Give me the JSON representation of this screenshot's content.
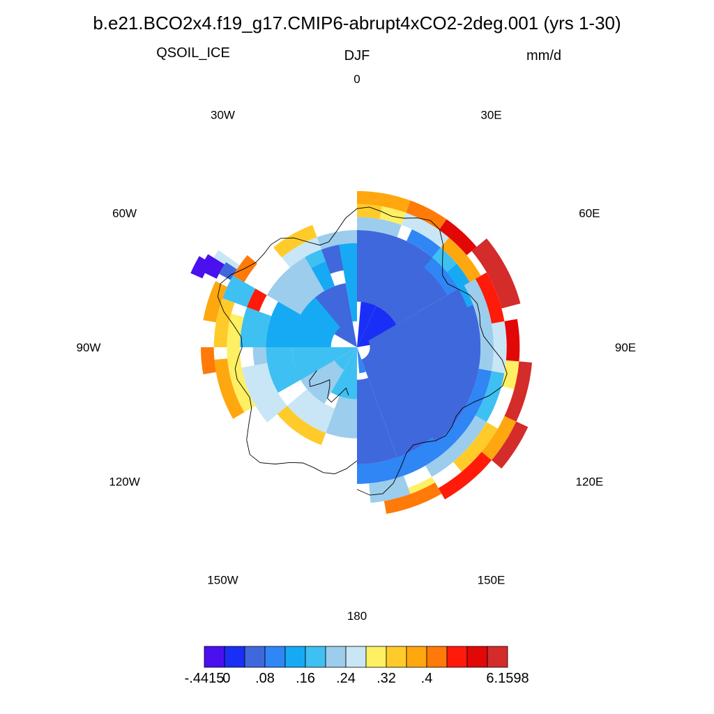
{
  "chart_data": {
    "type": "heatmap",
    "projection": "south-polar-stereographic",
    "title": "b.e21.BCO2x4.f19_g17.CMIP6-abrupt4xCO2-2deg.001 (yrs 1-30)",
    "left_string": "QSOIL_ICE",
    "center_string": "DJF",
    "right_string": "mm/d",
    "longitude_labels": [
      {
        "lon": 0,
        "text": "0"
      },
      {
        "lon": 30,
        "text": "30E"
      },
      {
        "lon": 60,
        "text": "60E"
      },
      {
        "lon": 90,
        "text": "90E"
      },
      {
        "lon": 120,
        "text": "120E"
      },
      {
        "lon": 150,
        "text": "150E"
      },
      {
        "lon": 180,
        "text": "180"
      },
      {
        "lon": -150,
        "text": "150W"
      },
      {
        "lon": -120,
        "text": "120W"
      },
      {
        "lon": -90,
        "text": "90W"
      },
      {
        "lon": -60,
        "text": "60W"
      },
      {
        "lon": -30,
        "text": "30W"
      }
    ],
    "colorbar": {
      "colors": [
        "#4a10f0",
        "#1a2ff5",
        "#3f68dd",
        "#2f86f4",
        "#17aaf4",
        "#3fc0f2",
        "#9ccdec",
        "#c8e6f5",
        "#ffef63",
        "#ffcb2a",
        "#ffa70f",
        "#ff7a08",
        "#ff1a0a",
        "#e20808",
        "#d42b2b"
      ],
      "boundary_labels": [
        {
          "index": 0,
          "text": "-.4415"
        },
        {
          "index": 1,
          "text": ".0"
        },
        {
          "index": 3,
          "text": ".08"
        },
        {
          "index": 5,
          "text": ".16"
        },
        {
          "index": 7,
          "text": ".24"
        },
        {
          "index": 9,
          "text": ".32"
        },
        {
          "index": 11,
          "text": ".4"
        },
        {
          "index": 15,
          "text": "6.1598"
        }
      ]
    },
    "sectors": [
      {
        "lon0": 5,
        "lon1": 25,
        "lat0": -90,
        "lat1": -80,
        "level": 1
      },
      {
        "lon0": 25,
        "lon1": 80,
        "lat0": -90,
        "lat1": -83,
        "level": 1
      },
      {
        "lon0": 30,
        "lon1": 40,
        "lat0": -83,
        "lat1": -81,
        "level": 1
      },
      {
        "lon0": 60,
        "lon1": 80,
        "lat0": -83,
        "lat1": -79,
        "level": 1
      },
      {
        "lon0": 80,
        "lon1": 95,
        "lat0": -88,
        "lat1": -80,
        "level": 1
      },
      {
        "lon0": -30,
        "lon1": 0,
        "lat0": -78,
        "lat1": -74,
        "level": 2
      },
      {
        "lon0": 0,
        "lon1": 60,
        "lat0": -83,
        "lat1": -72,
        "level": 2
      },
      {
        "lon0": 60,
        "lon1": 160,
        "lat0": -88,
        "lat1": -71,
        "level": 2
      },
      {
        "lon0": 160,
        "lon1": 180,
        "lat0": -85,
        "lat1": -72,
        "level": 2
      },
      {
        "lon0": -60,
        "lon1": -10,
        "lat0": -90,
        "lat1": -80,
        "level": 2
      },
      {
        "lon0": 160,
        "lon1": 175,
        "lat0": -90,
        "lat1": -86,
        "level": 3
      },
      {
        "lon0": 25,
        "lon1": 40,
        "lat0": -72,
        "lat1": -70,
        "level": 3
      },
      {
        "lon0": 100,
        "lon1": 160,
        "lat0": -71,
        "lat1": -69,
        "level": 3
      },
      {
        "lon0": 40,
        "lon1": 60,
        "lat0": -74,
        "lat1": -72,
        "level": 3
      },
      {
        "lon0": 140,
        "lon1": 180,
        "lat0": -72,
        "lat1": -69,
        "level": 3
      },
      {
        "lon0": -10,
        "lon1": 0,
        "lat0": -86,
        "lat1": -74,
        "level": 4
      },
      {
        "lon0": -90,
        "lon1": -40,
        "lat0": -86,
        "lat1": -76,
        "level": 4
      },
      {
        "lon0": -40,
        "lon1": -20,
        "lat0": -80,
        "lat1": -76,
        "level": 4
      },
      {
        "lon0": -150,
        "lon1": -110,
        "lat0": -86,
        "lat1": -80,
        "level": 4
      },
      {
        "lon0": 50,
        "lon1": 70,
        "lat0": -72,
        "lat1": -70,
        "level": 4
      },
      {
        "lon0": -120,
        "lon1": -90,
        "lat0": -90,
        "lat1": -80,
        "level": 5
      },
      {
        "lon0": -150,
        "lon1": -120,
        "lat0": -90,
        "lat1": -86,
        "level": 5
      },
      {
        "lon0": -180,
        "lon1": -150,
        "lat0": -90,
        "lat1": -82,
        "level": 5
      },
      {
        "lon0": -120,
        "lon1": -90,
        "lat0": -80,
        "lat1": -76,
        "level": 5
      },
      {
        "lon0": -90,
        "lon1": -70,
        "lat0": -76,
        "lat1": -72,
        "level": 5
      },
      {
        "lon0": -30,
        "lon1": -20,
        "lat0": -76,
        "lat1": -74,
        "level": 5
      },
      {
        "lon0": -70,
        "lon1": -60,
        "lat0": -72,
        "lat1": -68,
        "level": 5
      },
      {
        "lon0": 40,
        "lon1": 50,
        "lat0": -72,
        "lat1": -70,
        "level": 5
      },
      {
        "lon0": 100,
        "lon1": 120,
        "lat0": -69,
        "lat1": -67,
        "level": 5
      },
      {
        "lon0": -60,
        "lon1": -30,
        "lat0": -80,
        "lat1": -74,
        "level": 6
      },
      {
        "lon0": -150,
        "lon1": -120,
        "lat0": -86,
        "lat1": -80,
        "level": 6
      },
      {
        "lon0": -180,
        "lon1": -160,
        "lat0": -82,
        "lat1": -76,
        "level": 6
      },
      {
        "lon0": -110,
        "lon1": -90,
        "lat0": -76,
        "lat1": -74,
        "level": 6
      },
      {
        "lon0": -20,
        "lon1": 0,
        "lat0": -74,
        "lat1": -72,
        "level": 6
      },
      {
        "lon0": 0,
        "lon1": 20,
        "lat0": -72,
        "lat1": -70,
        "level": 6
      },
      {
        "lon0": 60,
        "lon1": 100,
        "lat0": -71,
        "lat1": -69,
        "level": 6
      },
      {
        "lon0": 120,
        "lon1": 150,
        "lat0": -69,
        "lat1": -67,
        "level": 6
      },
      {
        "lon0": 160,
        "lon1": 175,
        "lat0": -69,
        "lat1": -66,
        "level": 6
      },
      {
        "lon0": -160,
        "lon1": -130,
        "lat0": -80,
        "lat1": -76,
        "level": 7
      },
      {
        "lon0": -130,
        "lon1": -100,
        "lat0": -76,
        "lat1": -72,
        "level": 7
      },
      {
        "lon0": -40,
        "lon1": -20,
        "lat0": -74,
        "lat1": -72,
        "level": 7
      },
      {
        "lon0": 20,
        "lon1": 40,
        "lat0": -70,
        "lat1": -68,
        "level": 7
      },
      {
        "lon0": 80,
        "lon1": 100,
        "lat0": -69,
        "lat1": -67,
        "level": 7
      },
      {
        "lon0": -60,
        "lon1": -55,
        "lat0": -68,
        "lat1": -64,
        "level": 7
      },
      {
        "lon0": -100,
        "lon1": -75,
        "lat0": -72,
        "lat1": -70,
        "level": 8
      },
      {
        "lon0": -120,
        "lon1": -100,
        "lat0": -72,
        "lat1": -70,
        "level": 8
      },
      {
        "lon0": 10,
        "lon1": 20,
        "lat0": -70,
        "lat1": -68,
        "level": 8
      },
      {
        "lon0": 95,
        "lon1": 105,
        "lat0": -67,
        "lat1": -65,
        "level": 8
      },
      {
        "lon0": 150,
        "lon1": 160,
        "lat0": -67,
        "lat1": -65,
        "level": 8
      },
      {
        "lon0": -90,
        "lon1": -70,
        "lat0": -70,
        "lat1": -68,
        "level": 9
      },
      {
        "lon0": -40,
        "lon1": -20,
        "lat0": -72,
        "lat1": -70,
        "level": 9
      },
      {
        "lon0": 0,
        "lon1": 10,
        "lat0": -70,
        "lat1": -68,
        "level": 9
      },
      {
        "lon0": -160,
        "lon1": -130,
        "lat0": -76,
        "lat1": -74,
        "level": 9
      },
      {
        "lon0": 120,
        "lon1": 140,
        "lat0": -67,
        "lat1": -65,
        "level": 9
      },
      {
        "lon0": -120,
        "lon1": -95,
        "lat0": -70,
        "lat1": -68,
        "level": 10
      },
      {
        "lon0": 0,
        "lon1": 20,
        "lat0": -68,
        "lat1": -66,
        "level": 10
      },
      {
        "lon0": 40,
        "lon1": 60,
        "lat0": -70,
        "lat1": -68,
        "level": 10
      },
      {
        "lon0": -80,
        "lon1": -65,
        "lat0": -68,
        "lat1": -66,
        "level": 10
      },
      {
        "lon0": 100,
        "lon1": 130,
        "lat0": -65,
        "lat1": -63,
        "level": 10
      },
      {
        "lon0": -60,
        "lon1": -50,
        "lat0": -70,
        "lat1": -68,
        "level": 11
      },
      {
        "lon0": -100,
        "lon1": -90,
        "lat0": -68,
        "lat1": -66,
        "level": 11
      },
      {
        "lon0": 20,
        "lon1": 35,
        "lat0": -68,
        "lat1": -66,
        "level": 11
      },
      {
        "lon0": 150,
        "lon1": 170,
        "lat0": -66,
        "lat1": -64,
        "level": 11
      },
      {
        "lon0": 60,
        "lon1": 80,
        "lat0": -69,
        "lat1": -67,
        "level": 12
      },
      {
        "lon0": 130,
        "lon1": 150,
        "lat0": -65,
        "lat1": -63,
        "level": 12
      },
      {
        "lon0": -70,
        "lon1": -60,
        "lat0": -74,
        "lat1": -72,
        "level": 12
      },
      {
        "lon0": 80,
        "lon1": 95,
        "lat0": -67,
        "lat1": -65,
        "level": 13
      },
      {
        "lon0": 35,
        "lon1": 50,
        "lat0": -68,
        "lat1": -66,
        "level": 13
      },
      {
        "lon0": 95,
        "lon1": 115,
        "lat0": -65,
        "lat1": -63,
        "level": 14
      },
      {
        "lon0": 50,
        "lon1": 75,
        "lat0": -67,
        "lat1": -64,
        "level": 14
      },
      {
        "lon0": 115,
        "lon1": 130,
        "lat0": -63,
        "lat1": -61,
        "level": 14
      },
      {
        "lon0": -64,
        "lon1": -58,
        "lat0": -66,
        "lat1": -63,
        "level": 0
      },
      {
        "lon0": -66,
        "lon1": -60,
        "lat0": -64,
        "lat1": -62,
        "level": 0
      },
      {
        "lon0": -62,
        "lon1": -57,
        "lat0": -68,
        "lat1": -66,
        "level": 2
      }
    ]
  }
}
